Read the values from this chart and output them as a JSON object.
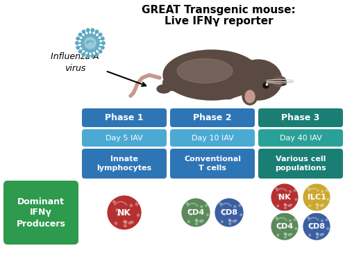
{
  "title_line1": "GREAT Transgenic mouse:",
  "title_line2": "Live IFNγ reporter",
  "virus_label": "Influenza A\nvirus",
  "phases": [
    "Phase 1",
    "Phase 2",
    "Phase 3"
  ],
  "days": [
    "Day 5 IAV",
    "Day 10 IAV",
    "Day 40 IAV"
  ],
  "cell_types": [
    "Innate\nlymphocytes",
    "Conventional\nT cells",
    "Various cell\npopulations"
  ],
  "dominant_label": "Dominant\nIFNγ\nProducers",
  "phase1_color": "#2E75B6",
  "phase2_color": "#2E75B6",
  "phase3_color": "#1A7E74",
  "day1_color": "#4BAAD3",
  "day2_color": "#4BAAD3",
  "day3_color": "#2AA198",
  "celltype1_color": "#2E75B6",
  "celltype2_color": "#2E75B6",
  "celltype3_color": "#1A7E74",
  "dominant_bg": "#2D9A4E",
  "background_color": "#FFFFFF",
  "nk1_color": "#B53030",
  "cd4_1_color": "#5A8A5A",
  "cd8_1_color": "#3B5FA0",
  "nk2_color": "#B53030",
  "ilc1_color": "#CCA830",
  "cd4_2_color": "#5A8A5A",
  "cd8_2_color": "#3B5FA0",
  "mouse_body_color": "#5A4A42",
  "mouse_belly_color": "#8B7B72",
  "mouse_ear_color": "#C49A8A",
  "tail_color": "#C49A8A",
  "virus_outer_color": "#5BA8C0",
  "virus_inner_color": "#9DCFDE"
}
